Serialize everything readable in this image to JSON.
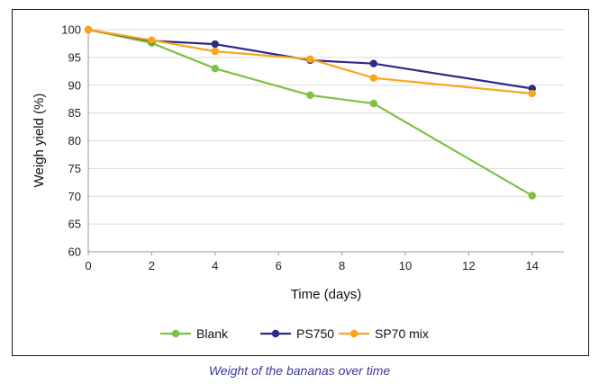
{
  "chart_data": {
    "type": "line",
    "xlabel": "Time (days)",
    "ylabel": "Weigh yield (%)",
    "xlim": [
      0,
      15
    ],
    "ylim": [
      60,
      100
    ],
    "xticks": [
      0,
      2,
      4,
      6,
      8,
      10,
      12,
      14
    ],
    "yticks": [
      60,
      65,
      70,
      75,
      80,
      85,
      90,
      95,
      100
    ],
    "grid": "horizontal",
    "legend_position": "bottom",
    "series": [
      {
        "name": "Blank",
        "color": "#7dc242",
        "x": [
          0,
          2,
          4,
          7,
          9,
          14
        ],
        "y": [
          100,
          97.6,
          93.0,
          88.2,
          86.7,
          70.1
        ]
      },
      {
        "name": "PS750",
        "color": "#2e2a8a",
        "x": [
          0,
          2,
          4,
          7,
          9,
          14
        ],
        "y": [
          100,
          98.0,
          97.4,
          94.5,
          93.9,
          89.4
        ]
      },
      {
        "name": "SP70 mix",
        "color": "#f9a51a",
        "x": [
          0,
          2,
          4,
          7,
          9,
          14
        ],
        "y": [
          100,
          98.1,
          96.1,
          94.7,
          91.3,
          88.5
        ]
      }
    ]
  },
  "caption": "Weight of the bananas over time"
}
